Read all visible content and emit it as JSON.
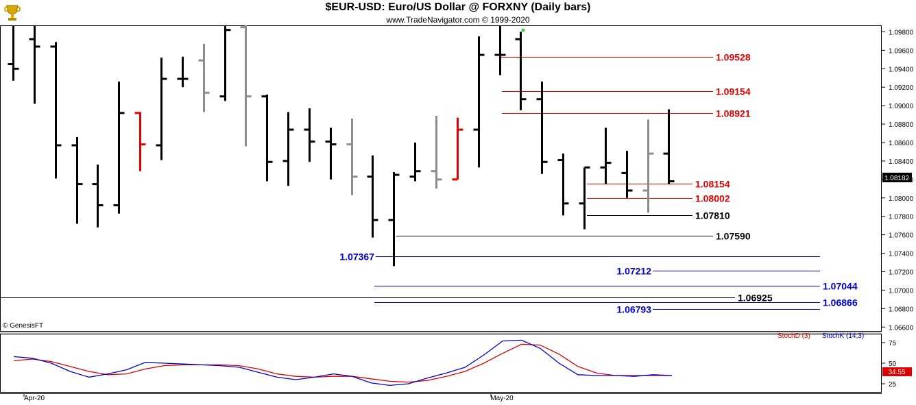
{
  "header": {
    "title": "$EUR-USD:  Euro/US Dollar @ FORXNY  (Daily bars)",
    "subtitle": "www.TradeNavigator.com © 1999-2020"
  },
  "price_panel": {
    "copyright": "© GenesisFT",
    "last_price_label": "1.08182",
    "y_ticks": [
      "1.06600",
      "1.06800",
      "1.07000",
      "1.07200",
      "1.07400",
      "1.07600",
      "1.07800",
      "1.08000",
      "1.08200",
      "1.08400",
      "1.08600",
      "1.08800",
      "1.09000",
      "1.09200",
      "1.09400",
      "1.09600",
      "1.09800"
    ]
  },
  "stoch_panel": {
    "legend_d": "StochD (3)",
    "legend_k": "StochK (14,3)",
    "last_value_label": "34.55",
    "y_ticks": [
      "25",
      "50",
      "75"
    ]
  },
  "x_axis": {
    "labels": [
      "Apr-20",
      "May-20"
    ]
  },
  "colors": {
    "red": "#dd0000",
    "blue": "#0000cc",
    "black": "#000000",
    "gray": "#8c8c8c",
    "green": "#22cc22"
  },
  "chart_data": {
    "type": "ohlc",
    "ylim": [
      1.0655,
      1.0987
    ],
    "bars": [
      {
        "o": 1.0945,
        "h": 1.099,
        "l": 1.0927,
        "c": 1.094,
        "color": "black"
      },
      {
        "o": 1.0972,
        "h": 1.0988,
        "l": 1.0902,
        "c": 1.0964,
        "color": "black"
      },
      {
        "o": 1.0964,
        "h": 1.0969,
        "l": 1.0821,
        "c": 1.0857,
        "color": "black"
      },
      {
        "o": 1.0857,
        "h": 1.0866,
        "l": 1.0772,
        "c": 1.0815,
        "color": "black"
      },
      {
        "o": 1.0815,
        "h": 1.0836,
        "l": 1.0768,
        "c": 1.0792,
        "color": "black"
      },
      {
        "o": 1.0792,
        "h": 1.0926,
        "l": 1.0783,
        "c": 1.0892,
        "color": "black"
      },
      {
        "o": 1.0892,
        "h": 1.0893,
        "l": 1.0829,
        "c": 1.0858,
        "color": "red"
      },
      {
        "o": 1.0857,
        "h": 1.0952,
        "l": 1.0841,
        "c": 1.0929,
        "color": "black"
      },
      {
        "o": 1.0929,
        "h": 1.0953,
        "l": 1.092,
        "c": 1.0929,
        "color": "black"
      },
      {
        "o": 1.0949,
        "h": 1.0967,
        "l": 1.0893,
        "c": 1.0914,
        "color": "gray"
      },
      {
        "o": 1.091,
        "h": 1.0987,
        "l": 1.0905,
        "c": 1.0982,
        "color": "black"
      },
      {
        "o": 1.0985,
        "h": 1.0987,
        "l": 1.0856,
        "c": 1.091,
        "color": "gray"
      },
      {
        "o": 1.091,
        "h": 1.0912,
        "l": 1.0818,
        "c": 1.0839,
        "color": "black"
      },
      {
        "o": 1.084,
        "h": 1.0893,
        "l": 1.0813,
        "c": 1.0874,
        "color": "black"
      },
      {
        "o": 1.0874,
        "h": 1.0897,
        "l": 1.0839,
        "c": 1.0861,
        "color": "black"
      },
      {
        "o": 1.0861,
        "h": 1.0876,
        "l": 1.082,
        "c": 1.0858,
        "color": "black"
      },
      {
        "o": 1.0858,
        "h": 1.0886,
        "l": 1.0803,
        "c": 1.0823,
        "color": "gray"
      },
      {
        "o": 1.0823,
        "h": 1.0846,
        "l": 1.0757,
        "c": 1.0776,
        "color": "black"
      },
      {
        "o": 1.0776,
        "h": 1.0828,
        "l": 1.0726,
        "c": 1.0825,
        "color": "black"
      },
      {
        "o": 1.0823,
        "h": 1.086,
        "l": 1.0818,
        "c": 1.0829,
        "color": "black"
      },
      {
        "o": 1.0829,
        "h": 1.0889,
        "l": 1.081,
        "c": 1.082,
        "color": "gray"
      },
      {
        "o": 1.082,
        "h": 1.0887,
        "l": 1.082,
        "c": 1.0874,
        "color": "red"
      },
      {
        "o": 1.0874,
        "h": 1.0975,
        "l": 1.0833,
        "c": 1.0955,
        "color": "black"
      },
      {
        "o": 1.0955,
        "h": 1.0987,
        "l": 1.0933,
        "c": 1.0955,
        "color": "black"
      },
      {
        "o": 1.0972,
        "h": 1.098,
        "l": 1.0895,
        "c": 1.0907,
        "color": "black"
      },
      {
        "o": 1.0907,
        "h": 1.0926,
        "l": 1.0826,
        "c": 1.0839,
        "color": "black"
      },
      {
        "o": 1.0841,
        "h": 1.0848,
        "l": 1.0781,
        "c": 1.0794,
        "color": "black"
      },
      {
        "o": 1.0794,
        "h": 1.0833,
        "l": 1.0766,
        "c": 1.0833,
        "color": "black"
      },
      {
        "o": 1.0833,
        "h": 1.0876,
        "l": 1.0815,
        "c": 1.0838,
        "color": "black"
      },
      {
        "o": 1.0827,
        "h": 1.0851,
        "l": 1.08,
        "c": 1.0808,
        "color": "black"
      },
      {
        "o": 1.0808,
        "h": 1.0885,
        "l": 1.0784,
        "c": 1.0848,
        "color": "gray"
      },
      {
        "o": 1.0848,
        "h": 1.0896,
        "l": 1.0815,
        "c": 1.0818,
        "color": "black"
      }
    ],
    "levels": [
      {
        "value": 1.09528,
        "label": "1.09528",
        "color": "red",
        "x0": 730,
        "x1": 1040,
        "label_side": "right"
      },
      {
        "value": 1.09154,
        "label": "1.09154",
        "color": "red",
        "x0": 732,
        "x1": 1040,
        "label_side": "right"
      },
      {
        "value": 1.08921,
        "label": "1.08921",
        "color": "red",
        "x0": 732,
        "x1": 1040,
        "label_side": "right"
      },
      {
        "value": 1.08154,
        "label": "1.08154",
        "color": "red",
        "x0": 856,
        "x1": 1010,
        "label_side": "right"
      },
      {
        "value": 1.08002,
        "label": "1.08002",
        "color": "red",
        "x0": 856,
        "x1": 1010,
        "label_side": "right"
      },
      {
        "value": 1.0781,
        "label": "1.07810",
        "color": "black",
        "x0": 856,
        "x1": 1010,
        "label_side": "right"
      },
      {
        "value": 1.0759,
        "label": "1.07590",
        "color": "black",
        "x0": 578,
        "x1": 1040,
        "label_side": "right"
      },
      {
        "value": 1.07367,
        "label": "1.07367",
        "color": "blue",
        "x0": 548,
        "x1": 1196,
        "label_side": "left"
      },
      {
        "value": 1.07212,
        "label": "1.07212",
        "color": "blue",
        "x0": 952,
        "x1": 1196,
        "label_side": "left"
      },
      {
        "value": 1.07044,
        "label": "1.07044",
        "color": "blue",
        "x0": 546,
        "x1": 1196,
        "label_side": "right"
      },
      {
        "value": 1.06925,
        "label": "1.06925",
        "color": "black",
        "x0": 0,
        "x1": 1072,
        "label_side": "right"
      },
      {
        "value": 1.06866,
        "label": "1.06866",
        "color": "blue",
        "x0": 546,
        "x1": 1196,
        "label_side": "right"
      },
      {
        "value": 1.06793,
        "label": "1.06793",
        "color": "blue",
        "x0": 952,
        "x1": 1196,
        "label_side": "left"
      }
    ],
    "stoch": {
      "ylim": [
        15,
        85
      ],
      "stochK": [
        58,
        56,
        50,
        40,
        33,
        37,
        42,
        51,
        50,
        49,
        48,
        47,
        45,
        39,
        33,
        30,
        33,
        37,
        34,
        26,
        23,
        25,
        32,
        38,
        45,
        60,
        77,
        78,
        68,
        50,
        36,
        35,
        35,
        34,
        36,
        35
      ],
      "stochD": [
        53,
        55,
        52,
        46,
        40,
        36,
        37,
        43,
        47,
        48,
        48,
        48,
        47,
        43,
        37,
        34,
        33,
        34,
        34,
        31,
        28,
        27,
        29,
        34,
        40,
        50,
        62,
        73,
        72,
        61,
        46,
        38,
        35,
        35,
        35,
        35
      ]
    }
  }
}
